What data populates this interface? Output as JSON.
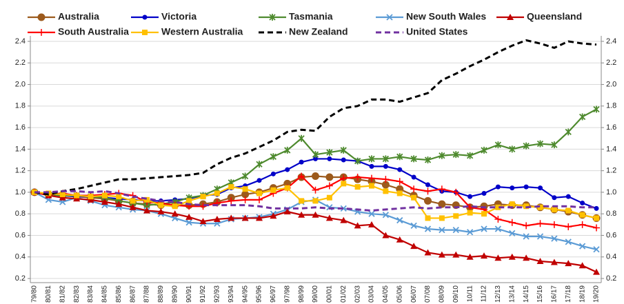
{
  "chart_data": {
    "type": "line",
    "categories": [
      "79/80",
      "80/81",
      "81/82",
      "82/83",
      "83/84",
      "84/85",
      "85/86",
      "86/87",
      "87/88",
      "88/89",
      "89/90",
      "90/91",
      "91/92",
      "92/93",
      "93/94",
      "94/95",
      "95/96",
      "96/97",
      "97/98",
      "98/99",
      "99/00",
      "00/01",
      "01/02",
      "02/03",
      "03/04",
      "04/05",
      "05/06",
      "06/07",
      "07/08",
      "08/09",
      "09/10",
      "10/11",
      "11/12",
      "12/13",
      "13/14",
      "14/15",
      "15/16",
      "16/17",
      "17/18",
      "18/19",
      "19/20"
    ],
    "ylim": [
      0.2,
      2.4
    ],
    "yticks": [
      {
        "value": 0.2,
        "label": "0.2"
      },
      {
        "value": 0.4,
        "label": "0.4"
      },
      {
        "value": 0.6,
        "label": "0.6"
      },
      {
        "value": 0.8,
        "label": "0.8"
      },
      {
        "value": 1.0,
        "label": "1.0"
      },
      {
        "value": 1.2,
        "label": "1.2"
      },
      {
        "value": 1.4,
        "label": "1.4"
      },
      {
        "value": 1.6,
        "label": "1.6"
      },
      {
        "value": 1.8,
        "label": "1.8"
      },
      {
        "value": 2.0,
        "label": "2.0"
      },
      {
        "value": 2.2,
        "label": "2.2"
      },
      {
        "value": 2.4,
        "label": "2.4"
      }
    ],
    "grid": true,
    "series": [
      {
        "name": "Australia",
        "color": "#9c5a1c",
        "marker": "circle",
        "dash": false,
        "values": [
          1.0,
          0.98,
          0.97,
          0.96,
          0.95,
          0.94,
          0.92,
          0.9,
          0.89,
          0.88,
          0.88,
          0.88,
          0.89,
          0.91,
          0.95,
          0.98,
          1.0,
          1.04,
          1.08,
          1.14,
          1.15,
          1.14,
          1.14,
          1.12,
          1.1,
          1.07,
          1.03,
          0.97,
          0.92,
          0.89,
          0.88,
          0.86,
          0.87,
          0.89,
          0.88,
          0.88,
          0.86,
          0.84,
          0.82,
          0.79,
          0.76
        ]
      },
      {
        "name": "Victoria",
        "color": "#0000c8",
        "marker": "dot",
        "dash": false,
        "values": [
          1.0,
          0.98,
          0.97,
          0.96,
          0.96,
          0.95,
          0.94,
          0.93,
          0.92,
          0.92,
          0.93,
          0.94,
          0.97,
          0.98,
          1.04,
          1.06,
          1.11,
          1.17,
          1.21,
          1.28,
          1.31,
          1.31,
          1.3,
          1.29,
          1.24,
          1.24,
          1.21,
          1.14,
          1.07,
          1.01,
          1.0,
          0.96,
          0.99,
          1.05,
          1.04,
          1.05,
          1.04,
          0.95,
          0.96,
          0.9,
          0.85
        ]
      },
      {
        "name": "Tasmania",
        "color": "#4e8a2e",
        "marker": "star",
        "dash": false,
        "values": [
          1.0,
          0.98,
          0.97,
          0.97,
          0.96,
          0.95,
          0.92,
          0.9,
          0.88,
          0.89,
          0.91,
          0.95,
          0.97,
          1.03,
          1.09,
          1.15,
          1.26,
          1.33,
          1.39,
          1.5,
          1.35,
          1.37,
          1.39,
          1.29,
          1.31,
          1.31,
          1.33,
          1.31,
          1.3,
          1.34,
          1.35,
          1.34,
          1.39,
          1.44,
          1.4,
          1.43,
          1.45,
          1.44,
          1.56,
          1.7,
          1.77
        ]
      },
      {
        "name": "New South Wales",
        "color": "#5b9bd5",
        "marker": "cross",
        "dash": false,
        "values": [
          1.0,
          0.93,
          0.91,
          0.95,
          0.92,
          0.88,
          0.86,
          0.84,
          0.83,
          0.8,
          0.76,
          0.72,
          0.71,
          0.71,
          0.75,
          0.76,
          0.77,
          0.8,
          0.84,
          0.91,
          0.93,
          0.86,
          0.85,
          0.82,
          0.8,
          0.79,
          0.74,
          0.69,
          0.66,
          0.65,
          0.65,
          0.63,
          0.66,
          0.66,
          0.62,
          0.59,
          0.59,
          0.57,
          0.54,
          0.5,
          0.47
        ]
      },
      {
        "name": "Queensland",
        "color": "#c00000",
        "marker": "triangle",
        "dash": false,
        "values": [
          1.0,
          0.97,
          0.95,
          0.94,
          0.93,
          0.91,
          0.89,
          0.86,
          0.83,
          0.82,
          0.8,
          0.77,
          0.73,
          0.75,
          0.76,
          0.76,
          0.76,
          0.78,
          0.82,
          0.79,
          0.79,
          0.76,
          0.74,
          0.69,
          0.7,
          0.6,
          0.56,
          0.5,
          0.44,
          0.42,
          0.42,
          0.4,
          0.41,
          0.39,
          0.4,
          0.39,
          0.36,
          0.35,
          0.34,
          0.32,
          0.26
        ]
      },
      {
        "name": "South Australia",
        "color": "#ff0000",
        "marker": "plus",
        "dash": false,
        "values": [
          1.0,
          0.98,
          0.99,
          0.97,
          0.97,
          0.98,
          0.99,
          0.97,
          0.91,
          0.9,
          0.88,
          0.87,
          0.87,
          0.9,
          0.92,
          0.93,
          0.93,
          0.99,
          1.04,
          1.15,
          1.02,
          1.06,
          1.13,
          1.14,
          1.13,
          1.12,
          1.1,
          1.03,
          1.01,
          1.03,
          1.0,
          0.86,
          0.84,
          0.75,
          0.72,
          0.69,
          0.71,
          0.7,
          0.68,
          0.7,
          0.67
        ]
      },
      {
        "name": "Western Australia",
        "color": "#ffc000",
        "marker": "square",
        "dash": false,
        "values": [
          1.0,
          0.99,
          0.98,
          0.97,
          0.96,
          0.97,
          0.96,
          0.92,
          0.93,
          0.88,
          0.87,
          0.92,
          0.96,
          0.99,
          1.05,
          1.03,
          0.99,
          1.02,
          1.04,
          0.92,
          0.92,
          0.95,
          1.08,
          1.05,
          1.06,
          1.01,
          0.99,
          0.95,
          0.76,
          0.76,
          0.78,
          0.81,
          0.8,
          0.86,
          0.89,
          0.87,
          0.86,
          0.84,
          0.83,
          0.79,
          0.76
        ]
      },
      {
        "name": "New Zealand",
        "color": "#000000",
        "marker": "none",
        "dash": true,
        "values": [
          1.0,
          0.98,
          1.01,
          1.03,
          1.06,
          1.09,
          1.12,
          1.12,
          1.13,
          1.14,
          1.15,
          1.16,
          1.18,
          1.26,
          1.32,
          1.36,
          1.42,
          1.48,
          1.56,
          1.58,
          1.57,
          1.7,
          1.78,
          1.8,
          1.86,
          1.86,
          1.84,
          1.88,
          1.92,
          2.04,
          2.1,
          2.17,
          2.23,
          2.3,
          2.36,
          2.41,
          2.38,
          2.34,
          2.4,
          2.38,
          2.37
        ]
      },
      {
        "name": "United States",
        "color": "#7030a0",
        "marker": "none",
        "dash": true,
        "values": [
          1.0,
          1.0,
          1.01,
          1.01,
          1.0,
          1.01,
          0.99,
          0.96,
          0.94,
          0.92,
          0.91,
          0.89,
          0.88,
          0.88,
          0.88,
          0.88,
          0.87,
          0.85,
          0.85,
          0.85,
          0.86,
          0.85,
          0.85,
          0.84,
          0.83,
          0.84,
          0.85,
          0.86,
          0.85,
          0.86,
          0.86,
          0.87,
          0.86,
          0.86,
          0.86,
          0.86,
          0.87,
          0.87,
          0.87,
          0.86,
          0.86
        ]
      }
    ]
  }
}
